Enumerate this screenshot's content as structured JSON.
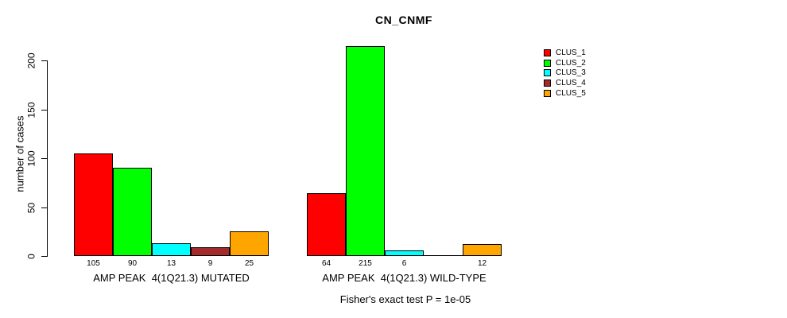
{
  "chart_data": {
    "type": "bar",
    "title": "CN_CNMF",
    "ylabel": "number of cases",
    "ylim": [
      0,
      220
    ],
    "yticks": [
      0,
      50,
      100,
      150,
      200
    ],
    "grid": false,
    "legend_position": "top-right",
    "series_names": [
      "CLUS_1",
      "CLUS_2",
      "CLUS_3",
      "CLUS_4",
      "CLUS_5"
    ],
    "colors": [
      "#ff0000",
      "#00ff00",
      "#00ffff",
      "#a52a2a",
      "#ffa500"
    ],
    "groups": [
      {
        "label": "AMP PEAK  4(1Q21.3) MUTATED",
        "values": [
          105,
          90,
          13,
          9,
          25
        ],
        "bar_labels": [
          "105",
          "90",
          "13",
          "9",
          "25"
        ]
      },
      {
        "label": "AMP PEAK  4(1Q21.3) WILD-TYPE",
        "values": [
          64,
          215,
          6,
          0,
          12
        ],
        "bar_labels": [
          "64",
          "215",
          "6",
          "",
          "12"
        ]
      }
    ],
    "annotation": "Fisher's exact test P = 1e-05"
  }
}
